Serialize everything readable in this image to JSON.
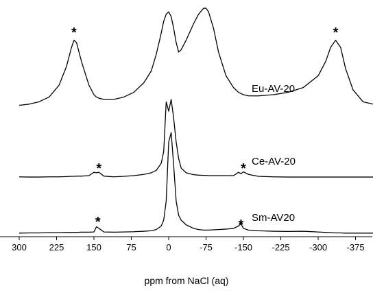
{
  "chart_data": {
    "type": "line",
    "xlabel": "ppm from NaCl (aq)",
    "xlim": [
      300,
      -410
    ],
    "ylim": [
      0,
      100
    ],
    "xticks": [
      300,
      225,
      150,
      75,
      0,
      -75,
      -150,
      -225,
      -300,
      -375
    ],
    "x": [
      300,
      280,
      260,
      240,
      220,
      205,
      195,
      190,
      185,
      175,
      160,
      150,
      145,
      140,
      130,
      110,
      90,
      70,
      50,
      35,
      25,
      15,
      10,
      5,
      0,
      -5,
      -10,
      -15,
      -20,
      -25,
      -35,
      -50,
      -60,
      -70,
      -75,
      -80,
      -90,
      -100,
      -115,
      -130,
      -140,
      -145,
      -150,
      -160,
      -180,
      -210,
      -240,
      -270,
      -300,
      -315,
      -325,
      -335,
      -345,
      -355,
      -370,
      -390,
      -410
    ],
    "series": [
      {
        "name": "Eu-AV-20",
        "color": "#000000",
        "values": [
          55.5,
          56,
          57,
          59,
          64,
          72,
          80,
          83,
          82,
          74,
          64,
          60,
          59,
          58.5,
          58,
          58,
          59,
          61,
          65,
          70,
          77,
          86,
          91,
          94,
          95,
          93,
          88,
          82,
          78,
          79,
          83,
          90,
          94,
          96.5,
          96.5,
          95,
          88,
          78,
          68,
          63,
          61,
          60.5,
          60,
          59.5,
          59.5,
          60,
          61,
          63,
          68,
          74,
          80,
          83,
          80,
          71,
          62,
          57,
          56
        ]
      },
      {
        "name": "Ce-AV-20",
        "color": "#000000",
        "values": [
          25.3,
          25.2,
          25.2,
          25.3,
          25.3,
          25.4,
          25.5,
          25.5,
          25.6,
          25.6,
          25.8,
          27.2,
          27,
          27.2,
          25.6,
          25.3,
          25.5,
          25.8,
          26.3,
          27,
          28,
          31,
          36,
          57,
          53,
          58,
          50,
          40,
          33,
          29,
          27,
          26.2,
          26,
          25.9,
          25.9,
          25.8,
          25.8,
          25.8,
          25.8,
          25.8,
          27.2,
          26.6,
          27.4,
          26.3,
          25.5,
          25.3,
          25.2,
          25.2,
          25.2,
          25.2,
          25.2,
          25.2,
          25.2,
          25.2,
          25.2,
          25.2,
          25.2
        ]
      },
      {
        "name": "Sm-AV20",
        "color": "#000000",
        "values": [
          1.5,
          1.6,
          1.6,
          1.7,
          1.7,
          1.8,
          1.8,
          1.8,
          1.8,
          1.9,
          1.9,
          2,
          4.2,
          3.5,
          2,
          1.9,
          2,
          2.1,
          2.3,
          2.5,
          3,
          4.5,
          7,
          15,
          40,
          44,
          30,
          15,
          9,
          7,
          5,
          3.5,
          3,
          2.8,
          2.8,
          2.8,
          2.9,
          3,
          3.2,
          3.5,
          4.5,
          5.5,
          3.5,
          2.8,
          2.5,
          2.3,
          2.2,
          2.3,
          2,
          1.8,
          1.7,
          1.6,
          1.6,
          1.5,
          1.5,
          1.5,
          1.5
        ]
      }
    ],
    "annotations": [
      {
        "text": "*",
        "x": 190,
        "y": 87.8
      },
      {
        "text": "*",
        "x": -335,
        "y": 87.8
      },
      {
        "text": "*",
        "x": 140,
        "y": 30.4
      },
      {
        "text": "*",
        "x": -150,
        "y": 30.4
      },
      {
        "text": "*",
        "x": 142,
        "y": 7.8
      },
      {
        "text": "*",
        "x": -145,
        "y": 6.7
      }
    ]
  }
}
